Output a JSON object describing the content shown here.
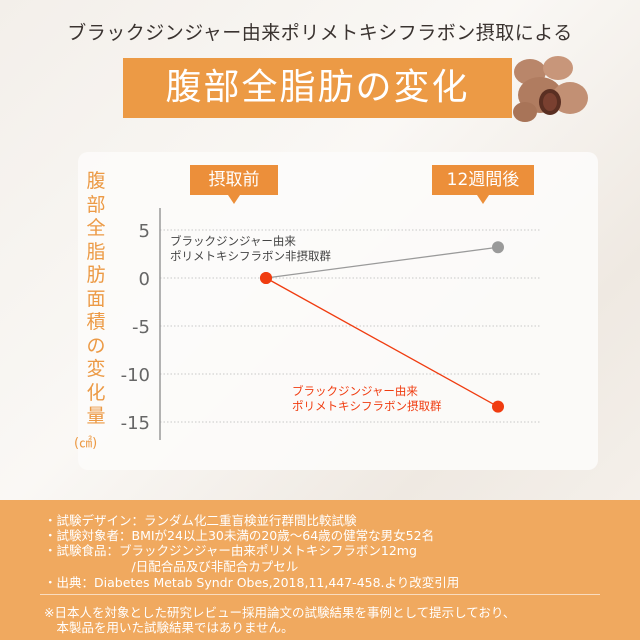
{
  "header": {
    "subtitle": "ブラックジンジャー由来ポリメトキシフラボン摂取による",
    "title": "腹部全脂肪の変化"
  },
  "chart_data": {
    "type": "line",
    "title": "",
    "ylabel": "腹部全脂肪面積の変化量",
    "yunit": "(㎠)",
    "categories": [
      "摂取前",
      "12週間後"
    ],
    "yticks": [
      5,
      0,
      -5,
      -10,
      -15
    ],
    "ylim": [
      -16,
      7
    ],
    "grid": "dotted horizontal",
    "series": [
      {
        "name": "ブラックジンジャー由来ポリメトキシフラボン非摂取群",
        "label_lines": [
          "ブラックジンジャー由来",
          "ポリメトキシフラボン非摂取群"
        ],
        "values": [
          0,
          3.2
        ],
        "color": "#9a9a9a"
      },
      {
        "name": "ブラックジンジャー由来ポリメトキシフラボン摂取群",
        "label_lines": [
          "ブラックジンジャー由来",
          "ポリメトキシフラボン摂取群"
        ],
        "values": [
          0,
          -13.4
        ],
        "color": "#f03c10"
      }
    ]
  },
  "notes": [
    "・試験デザイン：ランダム化二重盲検並行群間比較試験",
    "・試験対象者：BMIが24以上30未満の20歳～64歳の健常な男女52名",
    "・試験食品：ブラックジンジャー由来ポリメトキシフラボン12mg",
    "　　　　　　　/日配合品及び非配合カプセル",
    "・出典：Diabetes Metab Syndr Obes,2018,11,447-458.より改変引用"
  ],
  "disclaimer": [
    "※日本人を対象とした研究レビュー採用論文の試験結果を事例として提示しており、",
    "　本製品を用いた試験結果ではありません。"
  ],
  "colors": {
    "accent": "#ec9a45",
    "panel": "#f0a95f",
    "treated": "#f03c10",
    "control": "#9a9a9a"
  }
}
